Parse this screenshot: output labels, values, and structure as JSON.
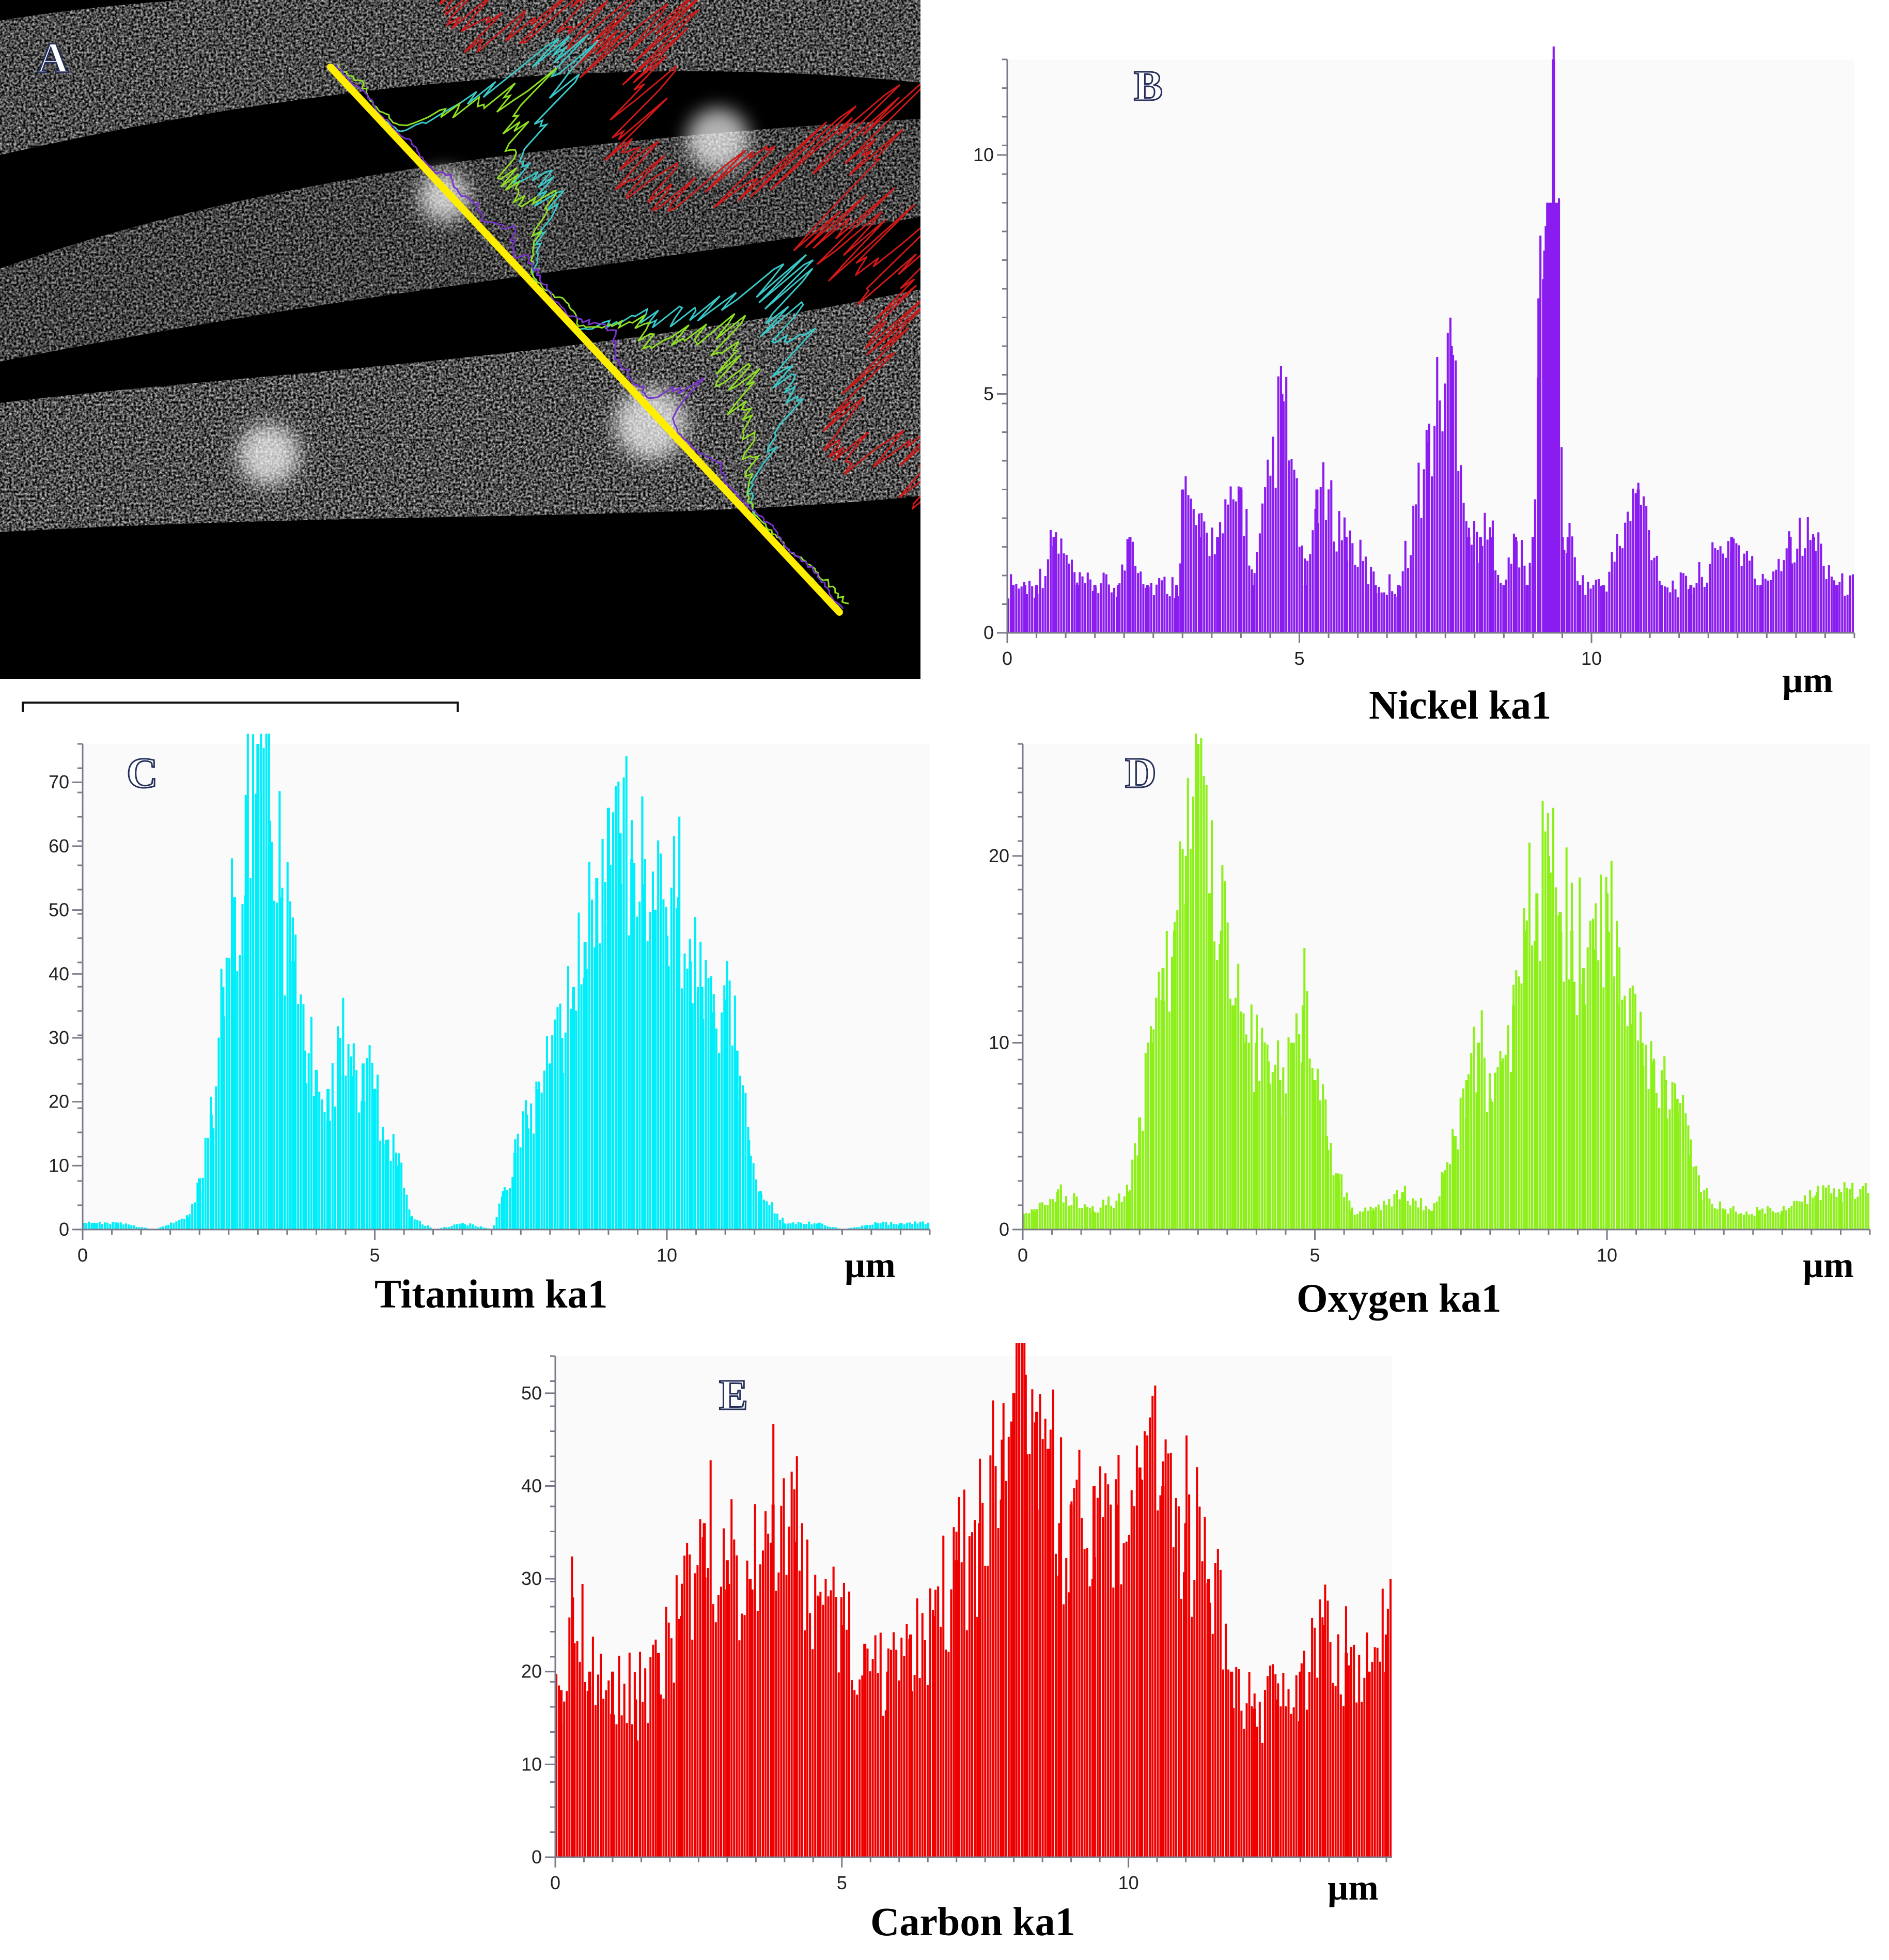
{
  "panel_a": {
    "label": "A",
    "line_colors": [
      "#ffee00",
      "#d01818",
      "#38c8c8",
      "#8ee020",
      "#7733cc"
    ]
  },
  "chart_data": [
    {
      "id": "B",
      "type": "bar",
      "label": "B",
      "title": "Nickel ka1",
      "unit": "µm",
      "color": "#8a1cf0",
      "xlim": [
        0,
        14.5
      ],
      "ylim": [
        0,
        12
      ],
      "xticks": [
        0,
        5,
        10
      ],
      "yticks": [
        0,
        5,
        10
      ],
      "x": [
        0.1,
        0.3,
        0.5,
        0.8,
        1.2,
        1.5,
        1.9,
        2.1,
        2.4,
        2.9,
        3.0,
        3.3,
        3.6,
        4.0,
        4.2,
        4.7,
        5.1,
        5.3,
        5.8,
        6.3,
        6.7,
        7.2,
        7.6,
        7.9,
        8.1,
        8.3,
        8.5,
        8.7,
        8.9,
        9.0,
        9.1,
        9.2,
        9.25,
        9.3,
        9.35,
        9.4,
        9.5,
        9.6,
        9.8,
        10.2,
        10.8,
        11.2,
        11.7,
        12.4,
        12.9,
        13.4,
        13.8,
        14.2
      ],
      "values": [
        1,
        1,
        1,
        2,
        1,
        1,
        1,
        2,
        1,
        1,
        3,
        2,
        2,
        3,
        1,
        5,
        1,
        3,
        2,
        1,
        1,
        4,
        6,
        2,
        2,
        2,
        1,
        2,
        1,
        2,
        7,
        8,
        9,
        9,
        12,
        9,
        2,
        2,
        1,
        1,
        3,
        1,
        1,
        2,
        1,
        2,
        2,
        1
      ]
    },
    {
      "id": "C",
      "type": "bar",
      "label": "C",
      "title": "Titanium ka1",
      "unit": "µm",
      "color": "#00eefa",
      "xlim": [
        0,
        14.5
      ],
      "ylim": [
        0,
        76
      ],
      "xticks": [
        0,
        5,
        10
      ],
      "yticks": [
        0,
        10,
        20,
        30,
        40,
        50,
        60,
        70
      ],
      "x": [
        0.2,
        0.6,
        1.2,
        1.8,
        2.0,
        2.2,
        2.4,
        2.6,
        2.8,
        3.0,
        3.2,
        3.4,
        3.6,
        3.8,
        4.0,
        4.2,
        4.4,
        4.6,
        4.8,
        5.0,
        5.2,
        5.4,
        5.6,
        6.0,
        6.5,
        7.0,
        7.2,
        7.4,
        7.6,
        7.8,
        8.0,
        8.2,
        8.4,
        8.6,
        8.8,
        9.0,
        9.2,
        9.4,
        9.6,
        9.8,
        10.0,
        10.2,
        10.4,
        10.6,
        10.8,
        11.0,
        11.2,
        11.4,
        11.6,
        12.0,
        12.6,
        13.0,
        13.6,
        14.0
      ],
      "values": [
        1,
        1,
        0,
        2,
        8,
        18,
        38,
        52,
        68,
        76,
        64,
        52,
        42,
        28,
        25,
        22,
        30,
        24,
        26,
        22,
        14,
        10,
        2,
        0,
        1,
        0,
        6,
        12,
        18,
        22,
        26,
        30,
        38,
        45,
        55,
        66,
        62,
        58,
        54,
        50,
        46,
        52,
        42,
        38,
        34,
        36,
        28,
        14,
        6,
        1,
        1,
        0,
        1,
        1
      ]
    },
    {
      "id": "D",
      "type": "bar",
      "label": "D",
      "title": "Oxygen ka1",
      "unit": "µm",
      "color": "#8ef01a",
      "xlim": [
        0,
        14.5
      ],
      "ylim": [
        0,
        26
      ],
      "xticks": [
        0,
        5,
        10
      ],
      "yticks": [
        0,
        10,
        20
      ],
      "x": [
        0.2,
        0.6,
        1.2,
        1.8,
        2.0,
        2.2,
        2.4,
        2.6,
        2.8,
        3.0,
        3.2,
        3.4,
        3.6,
        3.8,
        4.0,
        4.2,
        4.4,
        4.6,
        4.8,
        5.0,
        5.2,
        5.4,
        5.6,
        6.0,
        6.5,
        7.0,
        7.2,
        7.4,
        7.6,
        7.8,
        8.0,
        8.2,
        8.4,
        8.6,
        8.8,
        9.0,
        9.2,
        9.4,
        9.6,
        9.8,
        10.0,
        10.2,
        10.4,
        10.6,
        10.8,
        11.0,
        11.2,
        11.4,
        11.6,
        12.0,
        12.6,
        13.0,
        13.6,
        14.0
      ],
      "values": [
        1,
        2,
        1,
        2,
        6,
        10,
        14,
        16,
        20,
        26,
        18,
        16,
        12,
        10,
        10,
        9,
        8,
        10,
        12,
        8,
        5,
        3,
        1,
        1,
        2,
        1,
        3,
        5,
        8,
        10,
        7,
        9,
        12,
        16,
        18,
        20,
        17,
        16,
        14,
        15,
        18,
        12,
        11,
        10,
        9,
        8,
        7,
        4,
        2,
        1,
        1,
        1,
        2,
        2
      ]
    },
    {
      "id": "E",
      "type": "bar",
      "label": "E",
      "title": "Carbon ka1",
      "unit": "µm",
      "color": "#ee0000",
      "xlim": [
        0,
        14.6
      ],
      "ylim": [
        0,
        54
      ],
      "xticks": [
        0,
        5,
        10
      ],
      "yticks": [
        0,
        10,
        20,
        30,
        40,
        50
      ],
      "x": [
        0.1,
        0.3,
        0.6,
        1.0,
        1.4,
        1.8,
        2.2,
        2.6,
        3.0,
        3.4,
        3.8,
        4.2,
        4.6,
        5.0,
        5.4,
        5.8,
        6.2,
        6.6,
        7.0,
        7.4,
        7.8,
        8.0,
        8.2,
        8.4,
        8.6,
        8.8,
        9.0,
        9.4,
        9.8,
        10.2,
        10.6,
        11.0,
        11.4,
        11.8,
        12.2,
        12.6,
        13.0,
        13.4,
        13.8,
        14.2,
        14.5
      ],
      "values": [
        18,
        28,
        20,
        20,
        17,
        22,
        26,
        36,
        32,
        30,
        38,
        34,
        28,
        25,
        23,
        20,
        24,
        26,
        32,
        36,
        45,
        50,
        52,
        48,
        44,
        36,
        38,
        40,
        38,
        42,
        40,
        36,
        30,
        20,
        16,
        17,
        20,
        25,
        22,
        20,
        24
      ]
    }
  ]
}
